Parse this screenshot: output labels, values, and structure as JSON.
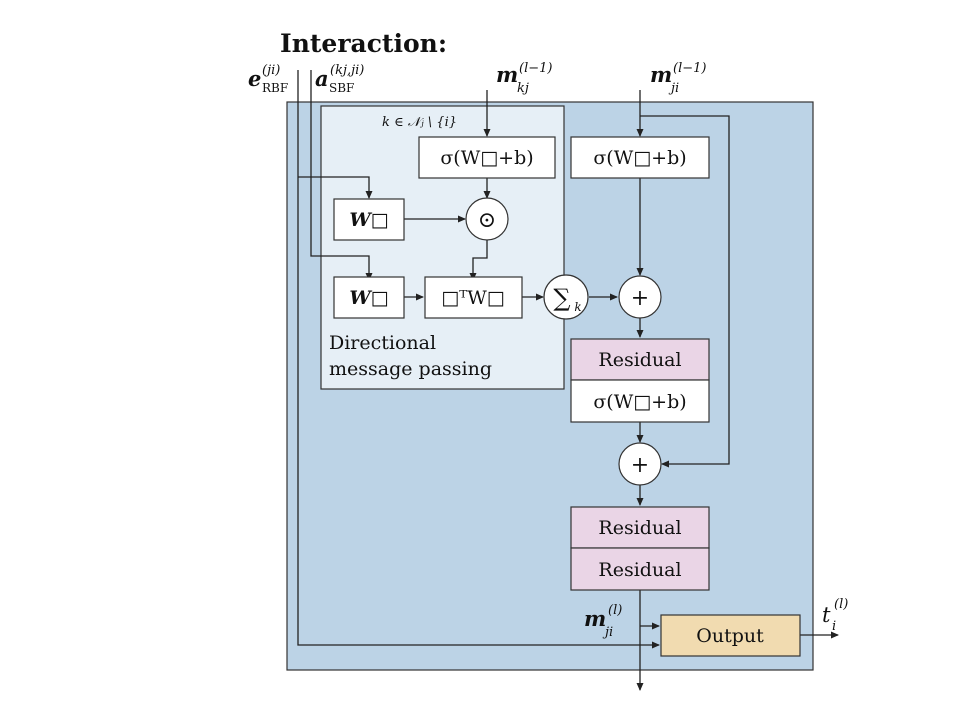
{
  "title": "Interaction:",
  "inputs": {
    "e_rbf": {
      "base": "e",
      "sub": "RBF",
      "sup": "(ji)"
    },
    "a_sbf": {
      "base": "a",
      "sub": "SBF",
      "sup": "(kj,ji)"
    },
    "m_kj": {
      "base": "m",
      "sub": "kj",
      "sup": "(l−1)"
    },
    "m_ji": {
      "base": "m",
      "sub": "ji",
      "sup": "(l−1)"
    }
  },
  "dmp": {
    "set_label": "k ∈ 𝒩ⱼ \\ {i}",
    "caption_line1": "Directional",
    "caption_line2": "message passing"
  },
  "blocks": {
    "dense_kj": "σ(W□+b)",
    "dense_ji": "σ(W□+b)",
    "w_rbf": "W□",
    "hadamard": "⊙",
    "w_sbf": "W□",
    "bilinear": "□ᵀW□",
    "sum_k": "∑",
    "sum_k_sub": "k",
    "plus1": "+",
    "residual1": "Residual",
    "dense_after": "σ(W□+b)",
    "plus2": "+",
    "residual2": "Residual",
    "residual3": "Residual",
    "output": "Output"
  },
  "outputs": {
    "m_ji_out": {
      "base": "m",
      "sub": "ji",
      "sup": "(l)"
    },
    "t_i": {
      "base": "t",
      "sub": "i",
      "sup": "(l)"
    }
  },
  "colors": {
    "panel": "#bcd3e6",
    "dmp_panel": "#e6eff6",
    "residual": "#ead5e6",
    "output": "#f1dbb0"
  }
}
